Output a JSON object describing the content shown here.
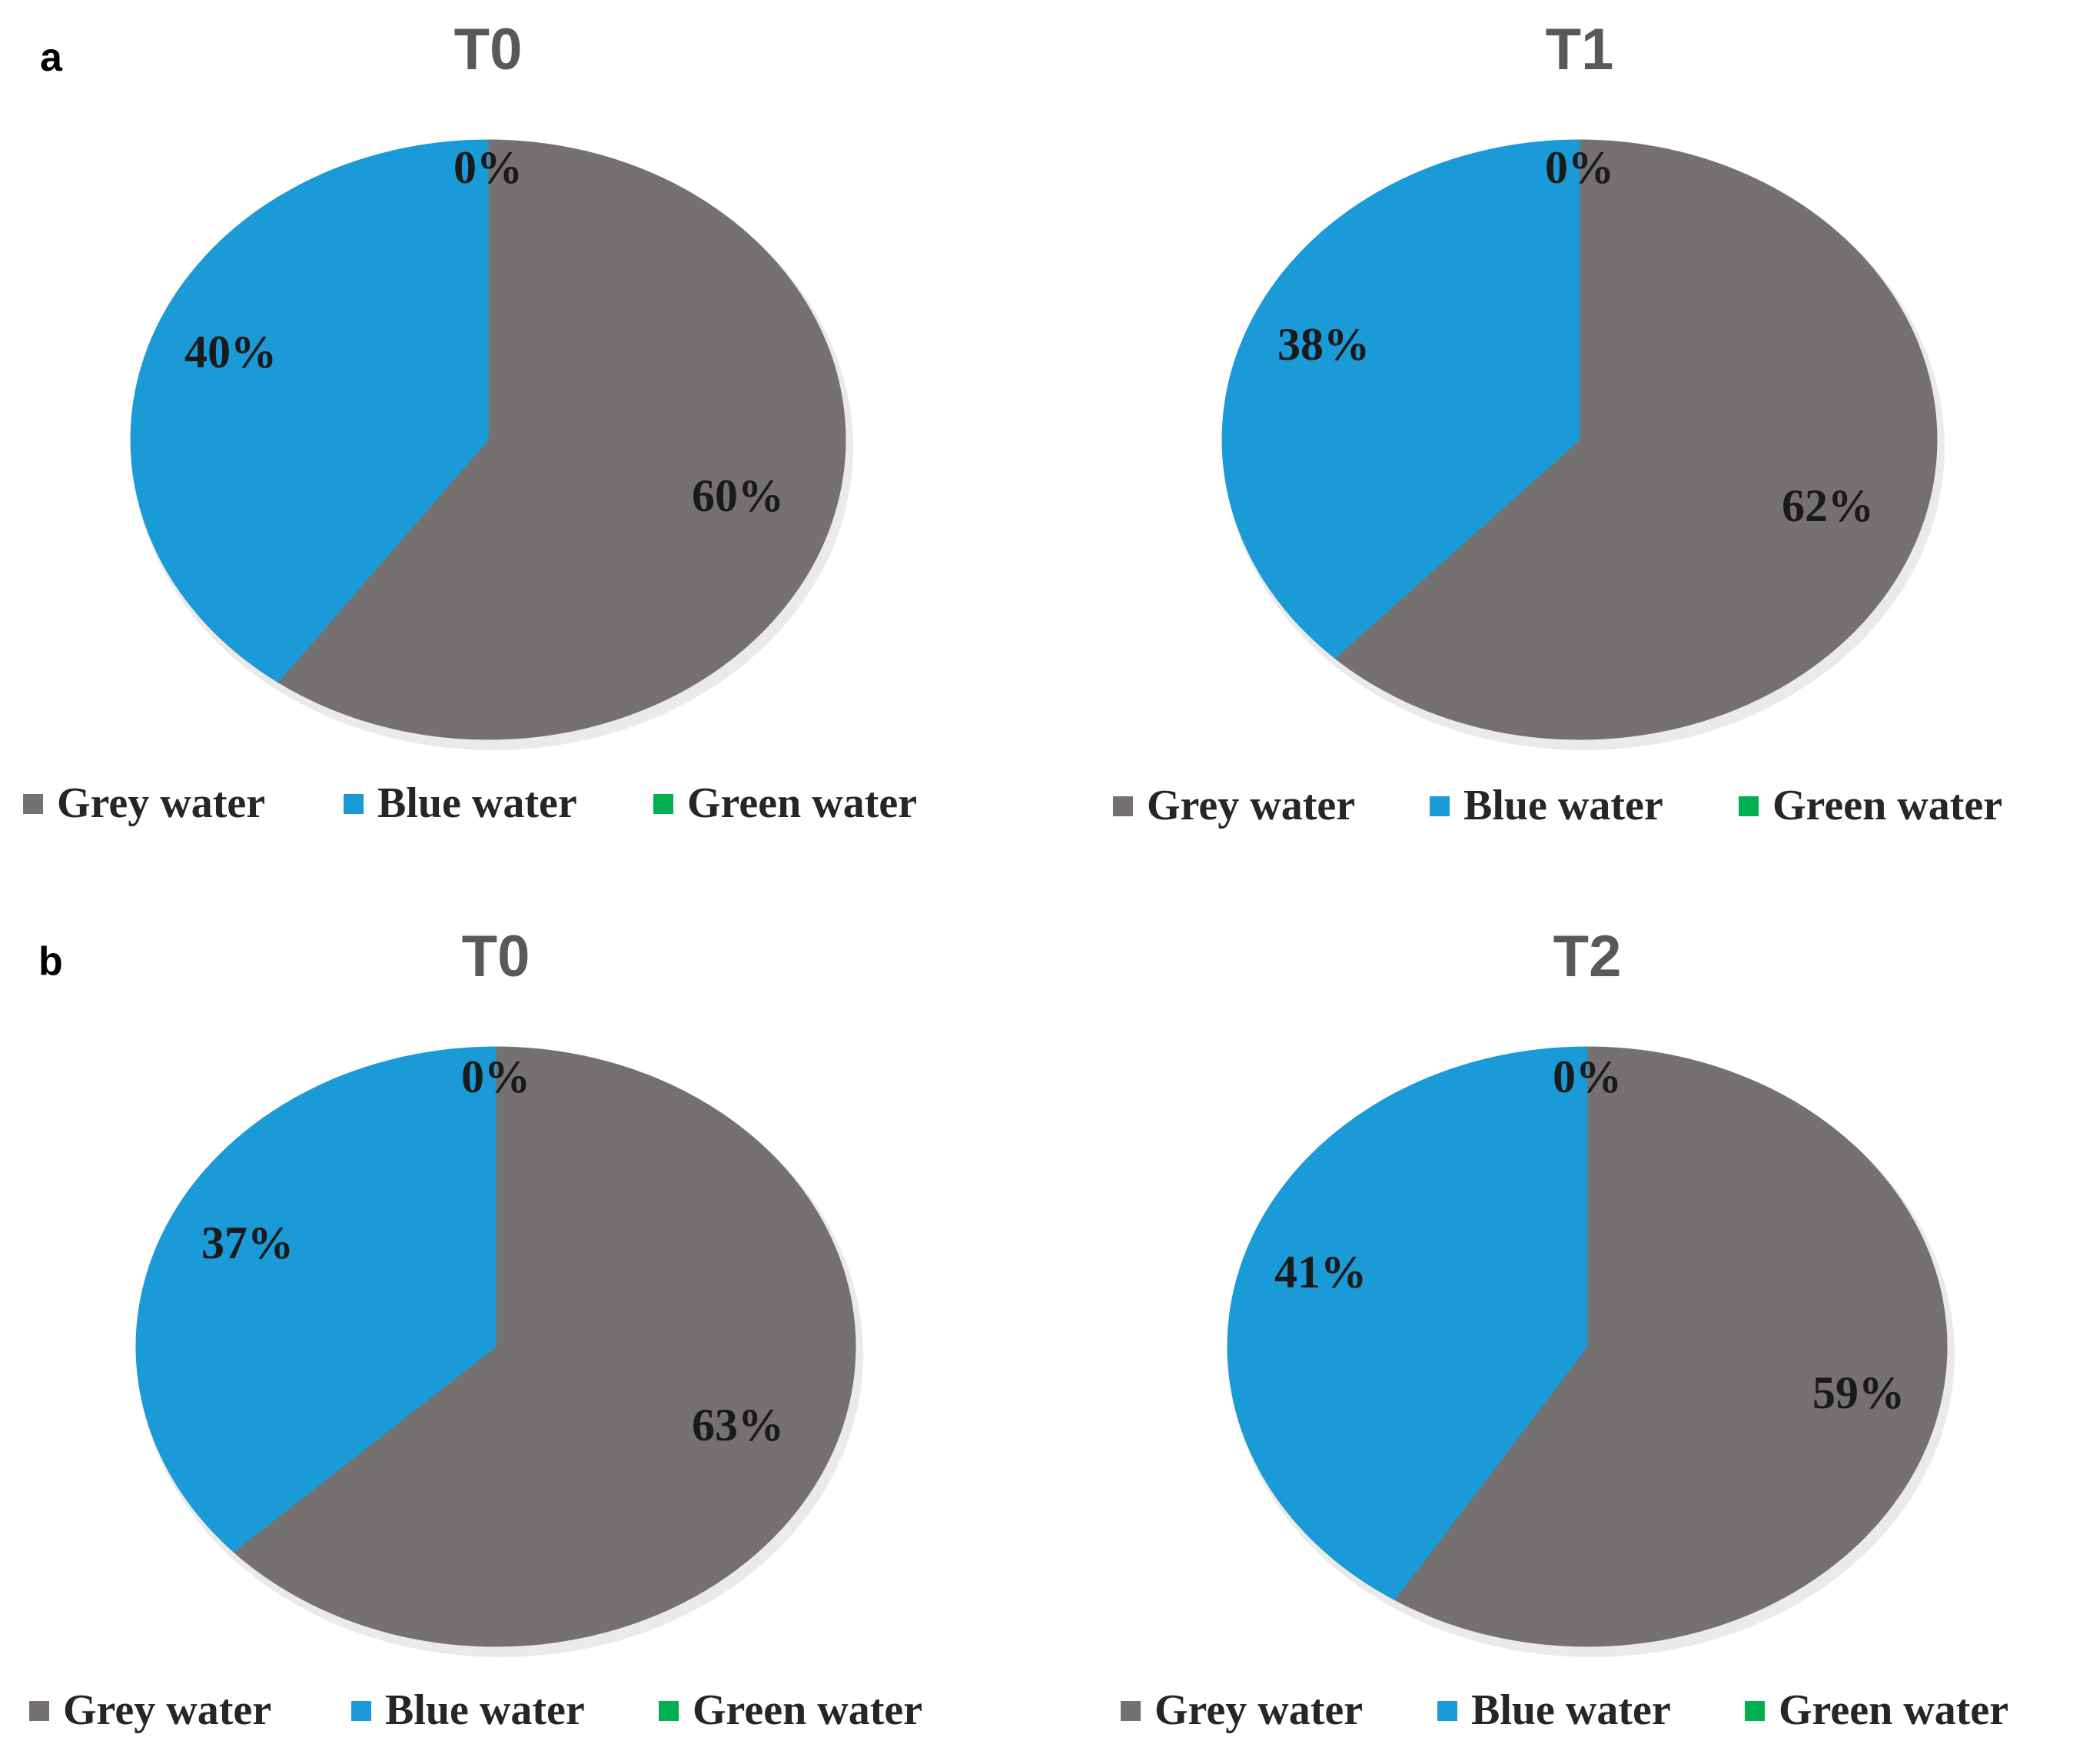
{
  "panels": [
    {
      "letter": "a"
    },
    {
      "letter": "b"
    }
  ],
  "chart_data": [
    {
      "type": "pie",
      "panel": "a",
      "title": "T0",
      "labels": [
        "Grey water",
        "Blue water",
        "Green water"
      ],
      "values": [
        60,
        40,
        0
      ],
      "value_labels": [
        "60%",
        "40%",
        "0%"
      ],
      "colors": [
        "#767171",
        "#1a9ad6",
        "#00b050"
      ],
      "legend_position": "bottom"
    },
    {
      "type": "pie",
      "panel": "a",
      "title": "T1",
      "labels": [
        "Grey water",
        "Blue water",
        "Green water"
      ],
      "values": [
        62,
        38,
        0
      ],
      "value_labels": [
        "62%",
        "38%",
        "0%"
      ],
      "colors": [
        "#767171",
        "#1a9ad6",
        "#00b050"
      ],
      "legend_position": "bottom"
    },
    {
      "type": "pie",
      "panel": "b",
      "title": "T0",
      "labels": [
        "Grey water",
        "Blue water",
        "Green water"
      ],
      "values": [
        63,
        37,
        0
      ],
      "value_labels": [
        "63%",
        "37%",
        "0%"
      ],
      "colors": [
        "#767171",
        "#1a9ad6",
        "#00b050"
      ],
      "legend_position": "bottom"
    },
    {
      "type": "pie",
      "panel": "b",
      "title": "T2",
      "labels": [
        "Grey water",
        "Blue water",
        "Green water"
      ],
      "values": [
        59,
        41,
        0
      ],
      "value_labels": [
        "59%",
        "41%",
        "0%"
      ],
      "colors": [
        "#767171",
        "#1a9ad6",
        "#00b050"
      ],
      "legend_position": "bottom"
    }
  ]
}
